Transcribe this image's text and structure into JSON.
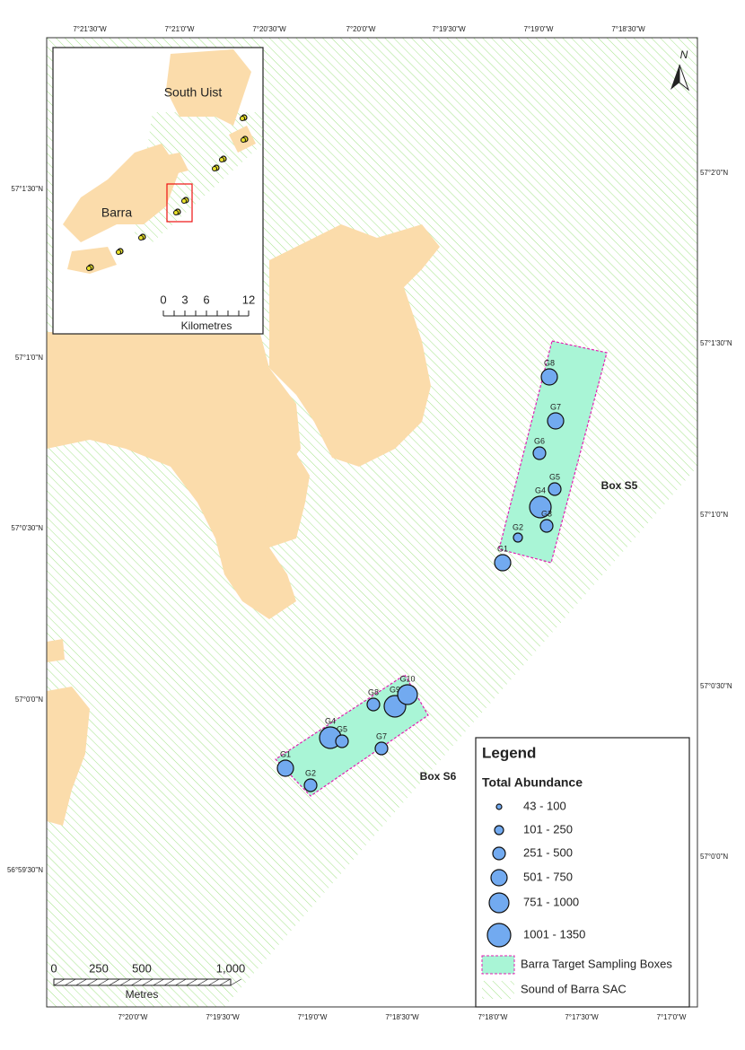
{
  "map": {
    "lon_ticks_top": [
      "7°21'30\"W",
      "7°21'0\"W",
      "7°20'30\"W",
      "7°20'0\"W",
      "7°19'30\"W",
      "7°19'0\"W",
      "7°18'30\"W"
    ],
    "lon_ticks_bottom": [
      "7°20'0\"W",
      "7°19'30\"W",
      "7°19'0\"W",
      "7°18'30\"W",
      "7°18'0\"W",
      "7°17'30\"W",
      "7°17'0\"W"
    ],
    "lat_ticks_left": [
      "57°1'30\"N",
      "57°1'0\"N",
      "57°0'30\"N",
      "57°0'0\"N",
      "56°59'30\"N"
    ],
    "lat_ticks_right": [
      "57°2'0\"N",
      "57°1'30\"N",
      "57°1'0\"N",
      "57°0'30\"N",
      "57°0'0\"N"
    ],
    "north": "N",
    "inset": {
      "labels": [
        "South Uist",
        "Barra"
      ],
      "scale_ticks": [
        "0",
        "3",
        "6",
        "12"
      ],
      "scale_unit": "Kilometres"
    },
    "scale": {
      "ticks": [
        "0",
        "250",
        "500",
        "1,000"
      ],
      "unit": "Metres"
    },
    "boxes": [
      {
        "name": "Box S5",
        "stations": [
          "G8",
          "G7",
          "G6",
          "G5",
          "G4",
          "G3",
          "G2",
          "G1"
        ]
      },
      {
        "name": "Box S6",
        "stations": [
          "G1",
          "G2",
          "G4",
          "G5",
          "G7",
          "G8",
          "G9",
          "G10"
        ]
      }
    ],
    "legend": {
      "title": "Legend",
      "subtitle": "Total Abundance",
      "classes": [
        "43 - 100",
        "101 - 250",
        "251 - 500",
        "501 - 750",
        "751 - 1000",
        "1001 - 1350"
      ],
      "items": [
        "Barra Target Sampling Boxes",
        "Sound of Barra SAC"
      ]
    }
  }
}
